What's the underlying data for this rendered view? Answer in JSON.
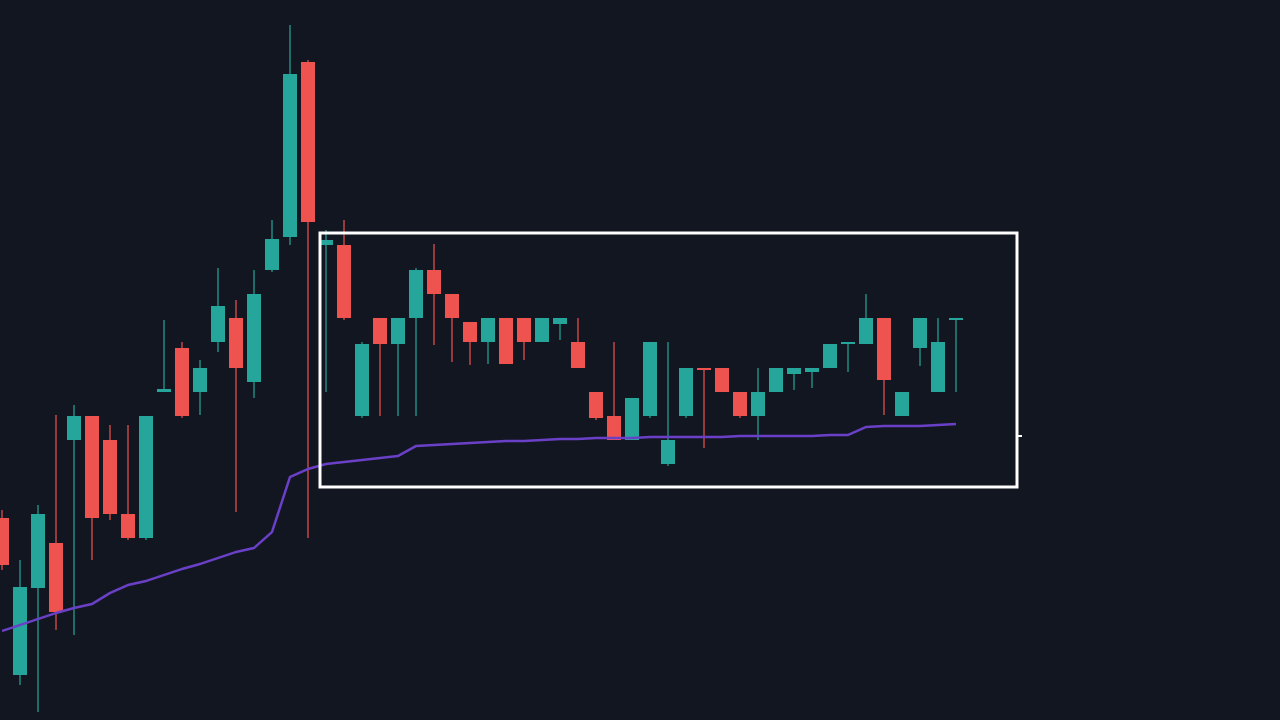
{
  "chart_data": {
    "type": "candlestick",
    "up_color": "#26a69a",
    "down_color": "#ef5350",
    "ylim": [
      0,
      720
    ],
    "open": [
      202,
      45,
      132,
      177,
      280,
      304,
      280,
      206,
      182,
      328,
      372,
      328,
      378,
      402,
      338,
      450,
      483,
      658,
      475,
      475,
      304,
      402,
      376,
      402,
      450,
      426,
      398,
      378,
      402,
      402,
      378,
      396,
      378,
      328,
      304,
      280,
      304,
      256,
      304,
      352,
      352,
      328,
      304,
      328,
      346,
      348,
      352,
      376,
      376,
      402,
      304,
      372,
      328,
      400
    ],
    "high": [
      210,
      160,
      215,
      305,
      315,
      304,
      295,
      295,
      304,
      400,
      378,
      360,
      452,
      420,
      450,
      500,
      695,
      660,
      490,
      500,
      378,
      402,
      402,
      452,
      476,
      426,
      398,
      402,
      402,
      402,
      402,
      402,
      402,
      328,
      378,
      322,
      378,
      378,
      352,
      352,
      352,
      328,
      352,
      352,
      352,
      352,
      376,
      378,
      426,
      402,
      328,
      402,
      402,
      402
    ],
    "low": [
      150,
      35,
      8,
      90,
      85,
      160,
      200,
      180,
      180,
      328,
      302,
      305,
      368,
      208,
      322,
      448,
      475,
      182,
      328,
      400,
      302,
      304,
      304,
      304,
      375,
      358,
      355,
      356,
      356,
      360,
      378,
      380,
      352,
      300,
      280,
      280,
      302,
      254,
      302,
      272,
      328,
      302,
      280,
      328,
      330,
      332,
      352,
      348,
      376,
      305,
      304,
      354,
      328,
      328
    ],
    "close": [
      155,
      133,
      206,
      108,
      304,
      202,
      206,
      182,
      304,
      331,
      304,
      352,
      414,
      352,
      426,
      481,
      646,
      498,
      480,
      402,
      376,
      376,
      402,
      450,
      426,
      402,
      378,
      402,
      356,
      378,
      402,
      402,
      352,
      302,
      280,
      322,
      378,
      280,
      352,
      350,
      328,
      304,
      328,
      352,
      352,
      352,
      376,
      378,
      402,
      340,
      328,
      402,
      378,
      402
    ],
    "ma": {
      "color": "#6a40c8",
      "values": [
        89,
        95,
        101,
        107,
        112,
        116,
        127,
        135,
        139,
        145,
        151,
        156,
        162,
        168,
        172,
        188,
        243,
        251,
        256,
        258,
        260,
        262,
        264,
        274,
        275,
        276,
        277,
        278,
        279,
        279,
        280,
        281,
        281,
        282,
        282,
        282,
        283,
        283,
        283,
        283,
        283,
        284,
        284,
        284,
        284,
        284,
        285,
        285,
        293,
        294,
        294,
        294,
        295,
        296
      ]
    }
  }
}
